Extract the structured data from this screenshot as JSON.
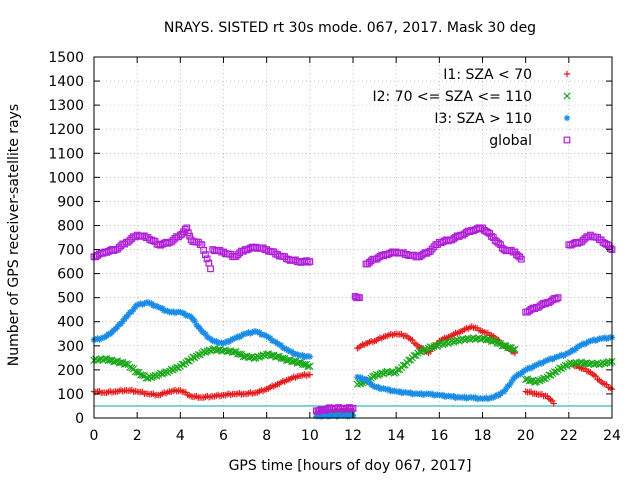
{
  "chart_data": {
    "type": "scatter",
    "title": "NRAYS. SISTED rt 30s mode. 067, 2017. Mask 30 deg",
    "xlabel": "GPS time [hours of doy 067, 2017]",
    "ylabel": "Number of GPS receiver-satellite rays",
    "xlim": [
      0,
      24
    ],
    "ylim": [
      0,
      1500
    ],
    "xticks": [
      "0",
      "2",
      "4",
      "6",
      "8",
      "10",
      "12",
      "14",
      "16",
      "18",
      "20",
      "22",
      "24"
    ],
    "yticks": [
      "0",
      "100",
      "200",
      "300",
      "400",
      "500",
      "600",
      "700",
      "800",
      "900",
      "1000",
      "1100",
      "1200",
      "1300",
      "1400",
      "1500"
    ],
    "grid": true,
    "legend_position": "top-right",
    "reference_line": {
      "y": 50,
      "color": "#00aaaa"
    },
    "series": [
      {
        "name": "I1: SZA < 70",
        "marker": "+",
        "color": "#e41a1c",
        "x": [
          0,
          0.5,
          1,
          1.5,
          2,
          2.5,
          3,
          3.5,
          4,
          4.5,
          5,
          5.5,
          6,
          6.5,
          7,
          7.5,
          8,
          8.5,
          9,
          9.5,
          10,
          10.3,
          10.6,
          11,
          11.5,
          12,
          12.2,
          12.6,
          13,
          13.5,
          14,
          14.5,
          15,
          15.5,
          16,
          16.5,
          17,
          17.5,
          18,
          18.5,
          19,
          19.5,
          20,
          20.5,
          21,
          21.3,
          22.2,
          22.5,
          23,
          23.5,
          24
        ],
        "y": [
          110,
          105,
          110,
          115,
          110,
          100,
          95,
          110,
          115,
          90,
          85,
          90,
          95,
          100,
          100,
          105,
          120,
          140,
          160,
          175,
          180,
          20,
          22,
          25,
          28,
          30,
          290,
          310,
          320,
          340,
          350,
          340,
          300,
          270,
          320,
          340,
          360,
          380,
          360,
          340,
          300,
          270,
          110,
          100,
          90,
          60,
          220,
          210,
          190,
          150,
          120
        ]
      },
      {
        "name": "I2: 70 <= SZA <= 110",
        "marker": "x",
        "color": "#1aa81a",
        "x": [
          0,
          0.5,
          1,
          1.5,
          2,
          2.5,
          3,
          3.5,
          4,
          4.5,
          5,
          5.5,
          6,
          6.5,
          7,
          7.5,
          8,
          8.5,
          9,
          9.5,
          10,
          10.3,
          10.6,
          11,
          11.5,
          12,
          12.2,
          12.6,
          13,
          13.5,
          14,
          14.5,
          15,
          15.5,
          16,
          16.5,
          17,
          17.5,
          18,
          18.5,
          19,
          19.5,
          20,
          20.5,
          21,
          21.5,
          22,
          22.5,
          23,
          23.5,
          24
        ],
        "y": [
          240,
          245,
          235,
          225,
          190,
          165,
          180,
          195,
          215,
          245,
          270,
          285,
          280,
          275,
          255,
          250,
          265,
          255,
          240,
          230,
          215,
          12,
          15,
          18,
          18,
          20,
          140,
          150,
          175,
          190,
          190,
          230,
          270,
          290,
          305,
          315,
          325,
          330,
          330,
          320,
          300,
          285,
          160,
          150,
          170,
          200,
          225,
          230,
          225,
          225,
          235
        ]
      },
      {
        "name": "I3: SZA > 110",
        "marker": "*",
        "color": "#1a8ce6",
        "x": [
          0,
          0.5,
          1,
          1.5,
          2,
          2.5,
          3,
          3.5,
          4,
          4.5,
          5,
          5.5,
          6,
          6.5,
          7,
          7.5,
          8,
          8.5,
          9,
          9.5,
          10,
          10.3,
          10.6,
          11,
          11.5,
          12,
          12.2,
          12.6,
          13,
          13.5,
          14,
          14.5,
          15,
          15.5,
          16,
          16.5,
          17,
          17.5,
          18,
          18.5,
          19,
          19.5,
          20,
          20.5,
          21,
          21.5,
          22,
          22.5,
          23,
          23.5,
          24
        ],
        "y": [
          325,
          335,
          370,
          420,
          470,
          480,
          460,
          440,
          440,
          420,
          360,
          320,
          310,
          330,
          350,
          360,
          340,
          310,
          280,
          260,
          255,
          8,
          10,
          10,
          10,
          10,
          170,
          160,
          130,
          120,
          110,
          105,
          100,
          100,
          95,
          90,
          85,
          85,
          80,
          85,
          110,
          170,
          200,
          220,
          240,
          255,
          270,
          300,
          320,
          330,
          335
        ]
      },
      {
        "name": "global",
        "marker": "square",
        "color": "#b01fd8",
        "x": [
          0,
          0.5,
          1,
          1.5,
          2,
          2.5,
          3,
          3.5,
          4,
          4.3,
          4.5,
          5,
          5.4,
          5.5,
          6,
          6.5,
          7,
          7.5,
          8,
          8.5,
          9,
          9.5,
          10,
          10.3,
          10.6,
          11,
          11.5,
          12,
          12.1,
          12.3,
          12.6,
          13,
          13.5,
          14,
          14.5,
          15,
          15.5,
          16,
          16.5,
          17,
          17.5,
          18,
          18.5,
          19,
          19.5,
          19.8,
          20,
          20.5,
          21,
          21.5,
          22,
          22.5,
          23,
          23.5,
          24
        ],
        "y": [
          670,
          690,
          700,
          730,
          760,
          750,
          720,
          730,
          760,
          790,
          740,
          720,
          620,
          700,
          690,
          670,
          700,
          710,
          700,
          680,
          660,
          650,
          650,
          30,
          35,
          40,
          40,
          40,
          505,
          500,
          640,
          660,
          680,
          690,
          680,
          670,
          690,
          730,
          740,
          760,
          780,
          790,
          750,
          700,
          690,
          660,
          440,
          460,
          480,
          500,
          720,
          730,
          760,
          740,
          700
        ]
      }
    ]
  }
}
